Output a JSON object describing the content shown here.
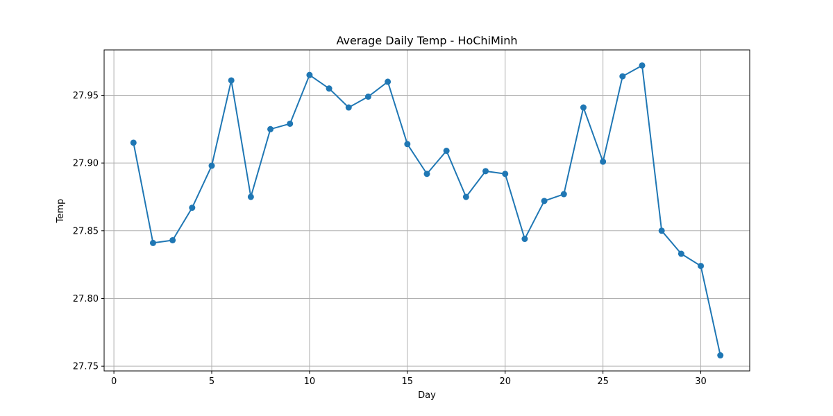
{
  "chart_data": {
    "type": "line",
    "title": "Average Daily Temp - HoChiMinh",
    "xlabel": "Day",
    "ylabel": "Temp",
    "xlim": [
      -0.5,
      32.5
    ],
    "ylim": [
      27.7465,
      27.9835
    ],
    "x_ticks": [
      0,
      5,
      10,
      15,
      20,
      25,
      30
    ],
    "y_ticks": [
      27.75,
      27.8,
      27.85,
      27.9,
      27.95
    ],
    "y_tick_labels": [
      "27.75",
      "27.80",
      "27.85",
      "27.90",
      "27.95"
    ],
    "grid": true,
    "markers": true,
    "color": "#1f77b4",
    "x": [
      1,
      2,
      3,
      4,
      5,
      6,
      7,
      8,
      9,
      10,
      11,
      12,
      13,
      14,
      15,
      16,
      17,
      18,
      19,
      20,
      21,
      22,
      23,
      24,
      25,
      26,
      27,
      28,
      29,
      30,
      31
    ],
    "y": [
      27.915,
      27.841,
      27.843,
      27.867,
      27.898,
      27.961,
      27.875,
      27.925,
      27.929,
      27.965,
      27.955,
      27.941,
      27.949,
      27.96,
      27.914,
      27.892,
      27.909,
      27.875,
      27.894,
      27.892,
      27.844,
      27.872,
      27.877,
      27.941,
      27.901,
      27.964,
      27.972,
      27.85,
      27.833,
      27.824,
      27.758
    ]
  }
}
